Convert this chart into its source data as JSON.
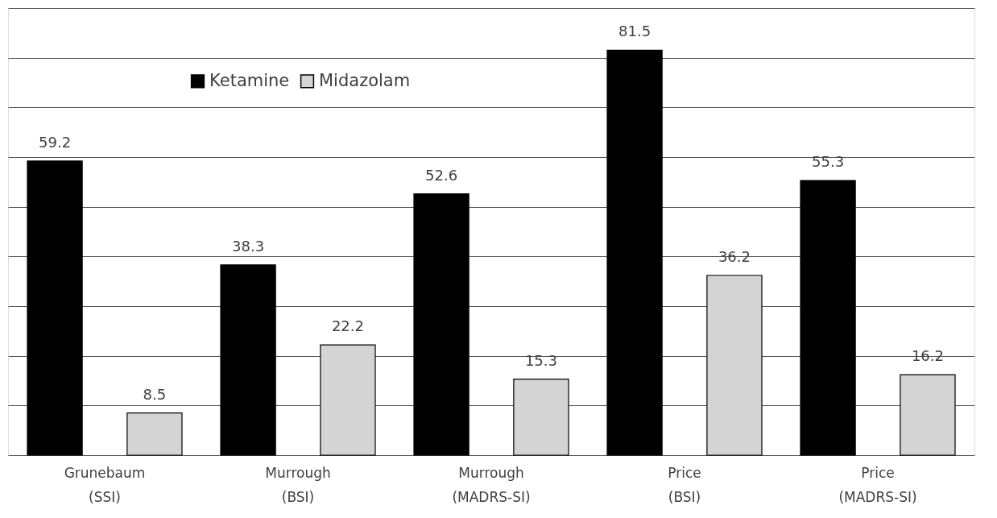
{
  "chart_data": {
    "type": "bar",
    "categories": [
      "Grunebaum\n(SSI)",
      "Murrough\n(BSI)",
      "Murrough\n(MADRS-SI)",
      "Price\n(BSI)",
      "Price\n(MADRS-SI)"
    ],
    "series": [
      {
        "name": "Ketamine",
        "color": "#000000",
        "values": [
          59.2,
          38.3,
          52.6,
          81.5,
          55.3
        ]
      },
      {
        "name": "Midazolam",
        "color": "#d4d4d4",
        "values": [
          8.5,
          22.2,
          15.3,
          36.2,
          16.2
        ]
      }
    ],
    "ylim": [
      0,
      90
    ],
    "yticks": [
      {
        "value": 0,
        "label": null
      },
      {
        "value": 10,
        "label": null
      },
      {
        "value": 20,
        "label": null
      },
      {
        "value": 30,
        "label": null
      },
      {
        "value": 40,
        "label": null
      },
      {
        "value": 50,
        "label": null
      },
      {
        "value": 60,
        "label": null
      },
      {
        "value": 70,
        "label": null
      },
      {
        "value": 80,
        "label": null
      },
      {
        "value": 90,
        "label": null
      }
    ],
    "tick_labels": "x",
    "grid": "y",
    "legend": "top left",
    "data_labels": true
  }
}
